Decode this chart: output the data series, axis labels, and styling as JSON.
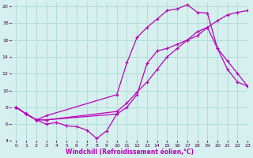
{
  "xlabel": "Windchill (Refroidissement éolien,°C)",
  "bg_color": "#d5f0ee",
  "grid_color": "#b0ddd8",
  "line_color": "#bb00bb",
  "line1_x": [
    0,
    1,
    2,
    3,
    4,
    5,
    6,
    7,
    8,
    9,
    10
  ],
  "line1_y": [
    8.0,
    7.2,
    6.5,
    6.0,
    6.2,
    5.8,
    5.7,
    5.3,
    4.3,
    5.2,
    7.2
  ],
  "line2_x": [
    0,
    1,
    2,
    3,
    10,
    11,
    12,
    13,
    14,
    15,
    16,
    17,
    18,
    19,
    20,
    21,
    22,
    23
  ],
  "line2_y": [
    8.0,
    7.2,
    6.5,
    7.0,
    9.5,
    13.3,
    16.3,
    17.5,
    18.5,
    19.5,
    19.7,
    20.2,
    19.3,
    19.2,
    15.0,
    12.5,
    11.0,
    10.5
  ],
  "line3_x": [
    0,
    1,
    2,
    3,
    10,
    11,
    12,
    13,
    14,
    15,
    16,
    17,
    18,
    19,
    20,
    21,
    22,
    23
  ],
  "line3_y": [
    8.0,
    7.2,
    6.5,
    6.5,
    7.2,
    8.0,
    9.5,
    13.2,
    14.7,
    15.0,
    15.5,
    16.0,
    16.5,
    17.5,
    18.3,
    19.0,
    19.3,
    19.5
  ],
  "line4_x": [
    0,
    1,
    2,
    3,
    10,
    11,
    12,
    13,
    14,
    15,
    16,
    17,
    18,
    19,
    20,
    21,
    22,
    23
  ],
  "line4_y": [
    8.0,
    7.2,
    6.5,
    6.5,
    7.5,
    8.5,
    9.8,
    11.0,
    12.5,
    14.0,
    15.0,
    16.0,
    17.0,
    17.5,
    15.0,
    13.5,
    12.0,
    10.5
  ],
  "xlim": [
    -0.5,
    23
  ],
  "ylim": [
    4,
    20.5
  ],
  "xticks": [
    0,
    1,
    2,
    3,
    4,
    5,
    6,
    7,
    8,
    9,
    10,
    11,
    12,
    13,
    14,
    15,
    16,
    17,
    18,
    19,
    20,
    21,
    22,
    23
  ],
  "yticks": [
    4,
    6,
    8,
    10,
    12,
    14,
    16,
    18,
    20
  ]
}
